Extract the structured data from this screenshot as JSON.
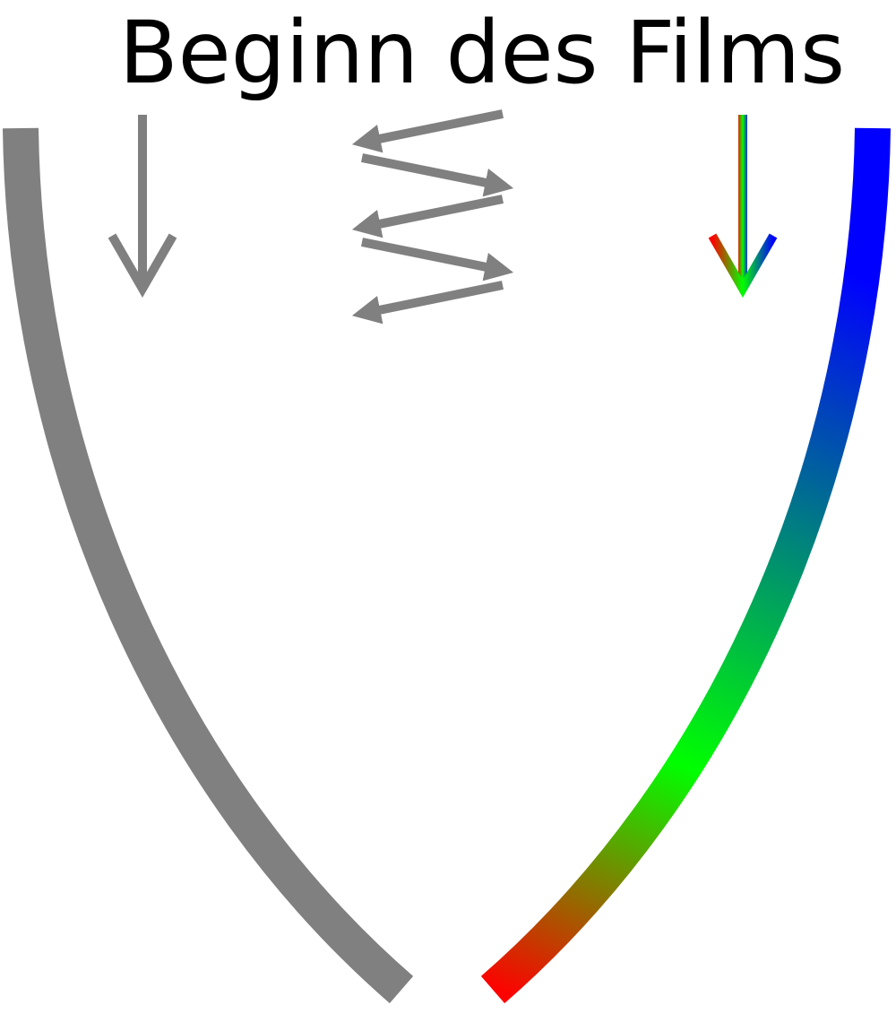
{
  "title": "Beginn des Films"
}
